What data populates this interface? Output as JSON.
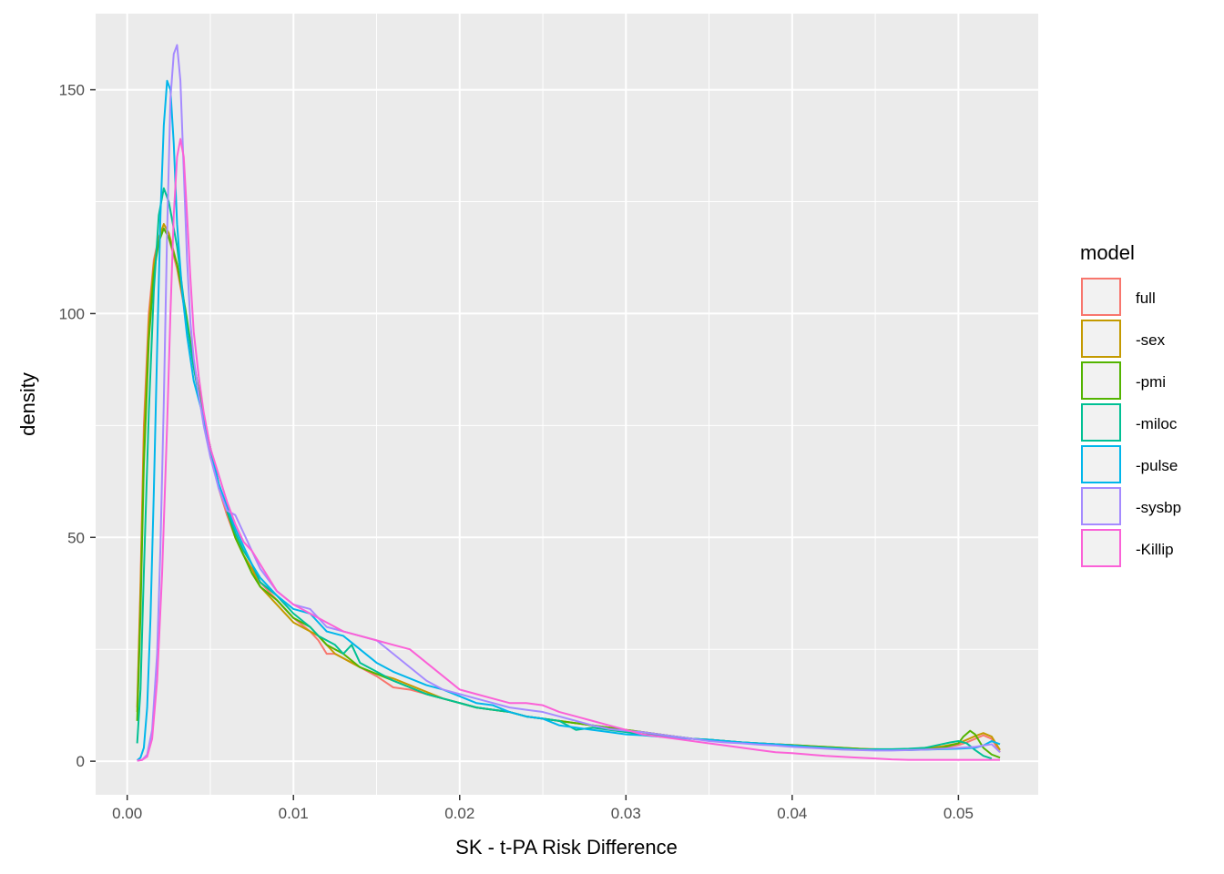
{
  "chart_data": {
    "type": "line",
    "title": "",
    "xlabel": "SK - t-PA Risk Difference",
    "ylabel": "density",
    "xlim": [
      -0.0019,
      0.0548
    ],
    "ylim": [
      -7.5,
      167
    ],
    "xticks": [
      0.0,
      0.01,
      0.02,
      0.03,
      0.04,
      0.05
    ],
    "xtick_labels": [
      "0.00",
      "0.01",
      "0.02",
      "0.03",
      "0.04",
      "0.05"
    ],
    "yticks": [
      0,
      50,
      100,
      150
    ],
    "ytick_labels": [
      "0",
      "50",
      "100",
      "150"
    ],
    "grid": true,
    "legend_title": "model",
    "legend_position": "right",
    "series": [
      {
        "name": "full",
        "color": "#F8766D",
        "x": [
          0.0006,
          0.0008,
          0.001,
          0.0013,
          0.0016,
          0.0019,
          0.0022,
          0.0025,
          0.003,
          0.0035,
          0.004,
          0.0045,
          0.005,
          0.0055,
          0.006,
          0.0065,
          0.007,
          0.0075,
          0.008,
          0.009,
          0.01,
          0.011,
          0.0115,
          0.012,
          0.0125,
          0.013,
          0.014,
          0.015,
          0.016,
          0.017,
          0.018,
          0.019,
          0.02,
          0.021,
          0.022,
          0.023,
          0.024,
          0.025,
          0.026,
          0.027,
          0.028,
          0.029,
          0.03,
          0.031,
          0.032,
          0.033,
          0.034,
          0.035,
          0.036,
          0.037,
          0.038,
          0.039,
          0.04,
          0.041,
          0.042,
          0.043,
          0.044,
          0.045,
          0.046,
          0.047,
          0.048,
          0.049,
          0.05,
          0.0505,
          0.051,
          0.0515,
          0.052,
          0.0525
        ],
        "y": [
          12,
          40,
          75,
          100,
          112,
          117,
          119,
          117,
          110,
          100,
          88,
          78,
          70,
          61,
          55,
          50,
          46,
          43,
          40,
          36,
          32,
          29,
          27,
          24,
          24,
          23,
          21,
          19,
          16.5,
          16,
          15,
          14,
          13,
          12,
          11.5,
          11,
          10,
          9.5,
          9,
          8.5,
          8,
          7.5,
          7,
          6.5,
          6,
          5.5,
          5,
          4.8,
          4.5,
          4.2,
          4,
          3.8,
          3.6,
          3.3,
          3,
          2.8,
          2.6,
          2.5,
          2.5,
          2.6,
          2.7,
          3,
          3.6,
          4.2,
          5,
          5.8,
          5,
          2
        ]
      },
      {
        "name": "-sex",
        "color": "#C49A00",
        "x": [
          0.0006,
          0.0008,
          0.001,
          0.0013,
          0.0016,
          0.0019,
          0.0022,
          0.0025,
          0.003,
          0.0035,
          0.004,
          0.0045,
          0.005,
          0.0055,
          0.006,
          0.0065,
          0.007,
          0.0075,
          0.008,
          0.009,
          0.01,
          0.011,
          0.0115,
          0.012,
          0.0125,
          0.013,
          0.014,
          0.015,
          0.016,
          0.017,
          0.018,
          0.019,
          0.02,
          0.021,
          0.022,
          0.023,
          0.024,
          0.025,
          0.026,
          0.027,
          0.028,
          0.029,
          0.03,
          0.031,
          0.032,
          0.033,
          0.034,
          0.035,
          0.036,
          0.037,
          0.038,
          0.039,
          0.04,
          0.041,
          0.042,
          0.043,
          0.044,
          0.045,
          0.046,
          0.047,
          0.048,
          0.049,
          0.05,
          0.0505,
          0.051,
          0.0515,
          0.052,
          0.0525
        ],
        "y": [
          11,
          38,
          72,
          98,
          111,
          117,
          120,
          118,
          111,
          100,
          89,
          79,
          70,
          62,
          56,
          50,
          46,
          43,
          39,
          35,
          31,
          29,
          28,
          26,
          24,
          23,
          21,
          19.5,
          18.5,
          17,
          15.5,
          14,
          13,
          12,
          11.5,
          11,
          10,
          9.5,
          9,
          8.5,
          8,
          7.5,
          7,
          6.5,
          6,
          5.5,
          5,
          4.8,
          4.5,
          4.2,
          4,
          3.8,
          3.6,
          3.4,
          3.2,
          3,
          2.8,
          2.7,
          2.6,
          2.7,
          3,
          3.3,
          4,
          4.8,
          5.6,
          6.3,
          5.5,
          2.5
        ]
      },
      {
        "name": "-pmi",
        "color": "#53B400",
        "x": [
          0.0006,
          0.0008,
          0.001,
          0.0013,
          0.0016,
          0.0019,
          0.0022,
          0.0025,
          0.003,
          0.0035,
          0.004,
          0.0045,
          0.005,
          0.0055,
          0.006,
          0.0065,
          0.007,
          0.0075,
          0.008,
          0.009,
          0.01,
          0.011,
          0.0115,
          0.012,
          0.0125,
          0.013,
          0.014,
          0.015,
          0.016,
          0.017,
          0.018,
          0.019,
          0.02,
          0.021,
          0.022,
          0.023,
          0.024,
          0.025,
          0.026,
          0.027,
          0.028,
          0.029,
          0.03,
          0.031,
          0.032,
          0.033,
          0.034,
          0.035,
          0.036,
          0.037,
          0.038,
          0.039,
          0.04,
          0.041,
          0.042,
          0.043,
          0.044,
          0.045,
          0.046,
          0.047,
          0.048,
          0.049,
          0.05,
          0.0503,
          0.0507,
          0.051,
          0.0515,
          0.052,
          0.0525
        ],
        "y": [
          9,
          33,
          66,
          94,
          109,
          116,
          119,
          117,
          111,
          101,
          89,
          79,
          70,
          62,
          56,
          50,
          46,
          42,
          39,
          36,
          32,
          30,
          28,
          26,
          25,
          24,
          21,
          19.5,
          18,
          16.5,
          15,
          14,
          13,
          12,
          11.5,
          11,
          10,
          9.5,
          9,
          8.5,
          8,
          7.5,
          7,
          6.5,
          6,
          5.5,
          5,
          4.8,
          4.5,
          4.2,
          4,
          3.8,
          3.6,
          3.4,
          3.2,
          3,
          2.8,
          2.6,
          2.5,
          2.5,
          2.7,
          3,
          4,
          5.5,
          6.8,
          6,
          3,
          1.5,
          0.8
        ]
      },
      {
        "name": "-miloc",
        "color": "#00C094",
        "x": [
          0.0006,
          0.0008,
          0.001,
          0.0013,
          0.0016,
          0.0019,
          0.0022,
          0.0025,
          0.003,
          0.0035,
          0.004,
          0.0045,
          0.005,
          0.0055,
          0.006,
          0.0065,
          0.007,
          0.0075,
          0.008,
          0.009,
          0.01,
          0.011,
          0.0115,
          0.012,
          0.0125,
          0.013,
          0.0135,
          0.014,
          0.015,
          0.016,
          0.017,
          0.018,
          0.019,
          0.02,
          0.021,
          0.022,
          0.023,
          0.024,
          0.025,
          0.026,
          0.027,
          0.028,
          0.029,
          0.03,
          0.031,
          0.032,
          0.033,
          0.034,
          0.035,
          0.036,
          0.037,
          0.038,
          0.039,
          0.04,
          0.041,
          0.042,
          0.043,
          0.044,
          0.045,
          0.046,
          0.047,
          0.048,
          0.049,
          0.0495,
          0.05,
          0.0505,
          0.051,
          0.0515,
          0.052
        ],
        "y": [
          4,
          16,
          42,
          78,
          105,
          122,
          128,
          125,
          115,
          100,
          88,
          78,
          70,
          62,
          56,
          51,
          47,
          44,
          40,
          37,
          33,
          30,
          28,
          27,
          26,
          24,
          26,
          22,
          20,
          18,
          16.5,
          15,
          14,
          13,
          12,
          11.5,
          11,
          10,
          9.5,
          9,
          7,
          7.5,
          7,
          6.5,
          6,
          5.8,
          5.5,
          5,
          4.8,
          4.5,
          4.2,
          4,
          3.8,
          3.5,
          3.2,
          3,
          2.8,
          2.6,
          2.7,
          2.7,
          2.8,
          3,
          3.8,
          4.2,
          4.5,
          4,
          2.5,
          1.2,
          0.6
        ]
      },
      {
        "name": "-pulse",
        "color": "#00B6EB",
        "x": [
          0.0006,
          0.0008,
          0.001,
          0.0012,
          0.0014,
          0.0016,
          0.0018,
          0.002,
          0.0022,
          0.0024,
          0.0026,
          0.0028,
          0.003,
          0.0033,
          0.0036,
          0.004,
          0.0045,
          0.005,
          0.0055,
          0.006,
          0.0065,
          0.007,
          0.0075,
          0.008,
          0.009,
          0.01,
          0.011,
          0.012,
          0.013,
          0.014,
          0.015,
          0.016,
          0.017,
          0.018,
          0.019,
          0.02,
          0.021,
          0.022,
          0.023,
          0.024,
          0.025,
          0.026,
          0.027,
          0.028,
          0.029,
          0.03,
          0.031,
          0.032,
          0.033,
          0.034,
          0.035,
          0.036,
          0.037,
          0.038,
          0.039,
          0.04,
          0.041,
          0.042,
          0.043,
          0.044,
          0.045,
          0.046,
          0.047,
          0.048,
          0.049,
          0.05,
          0.051,
          0.0515,
          0.052,
          0.0525
        ],
        "y": [
          0.2,
          0.8,
          3,
          12,
          32,
          60,
          92,
          122,
          142,
          152,
          150,
          138,
          120,
          105,
          95,
          85,
          78,
          70,
          62,
          57,
          52,
          48,
          44,
          41,
          37,
          34,
          33,
          29,
          28,
          25,
          22,
          20,
          18.5,
          17,
          16,
          14.5,
          13,
          12.5,
          11,
          10,
          9.5,
          8,
          7.5,
          7,
          6.5,
          6,
          5.8,
          5.5,
          5.2,
          5,
          4.8,
          4.5,
          4.2,
          4,
          3.8,
          3.5,
          3.2,
          3,
          2.8,
          2.6,
          2.5,
          2.5,
          2.5,
          2.6,
          2.7,
          2.8,
          3,
          3.5,
          4.5,
          3.8
        ]
      },
      {
        "name": "-sysbp",
        "color": "#A58AFF",
        "x": [
          0.0006,
          0.0009,
          0.0012,
          0.0015,
          0.0018,
          0.002,
          0.0022,
          0.0024,
          0.0026,
          0.0028,
          0.003,
          0.0032,
          0.0034,
          0.0036,
          0.0038,
          0.004,
          0.0043,
          0.0046,
          0.005,
          0.0055,
          0.006,
          0.0065,
          0.007,
          0.0075,
          0.008,
          0.009,
          0.01,
          0.011,
          0.012,
          0.013,
          0.014,
          0.015,
          0.016,
          0.017,
          0.018,
          0.019,
          0.02,
          0.021,
          0.022,
          0.023,
          0.024,
          0.025,
          0.026,
          0.027,
          0.028,
          0.029,
          0.03,
          0.031,
          0.032,
          0.033,
          0.034,
          0.035,
          0.036,
          0.037,
          0.038,
          0.039,
          0.04,
          0.041,
          0.042,
          0.043,
          0.044,
          0.045,
          0.046,
          0.047,
          0.048,
          0.049,
          0.05,
          0.051,
          0.0515,
          0.052,
          0.0525
        ],
        "y": [
          0.1,
          0.3,
          1.5,
          7,
          24,
          48,
          80,
          118,
          148,
          158,
          160,
          152,
          132,
          112,
          98,
          90,
          82,
          75,
          68,
          61,
          56,
          55,
          51,
          47,
          43,
          38,
          35,
          34,
          30,
          29,
          28,
          27,
          24,
          21,
          18,
          16,
          15,
          14,
          13,
          12,
          11.5,
          11,
          10,
          9,
          8,
          7.2,
          6.8,
          6.5,
          6,
          5.5,
          5,
          4.5,
          4.2,
          4,
          3.7,
          3.5,
          3.2,
          3,
          2.8,
          2.6,
          2.5,
          2.4,
          2.4,
          2.5,
          2.6,
          2.8,
          3,
          3.2,
          3.5,
          3.8,
          2
        ]
      },
      {
        "name": "-Killip",
        "color": "#FB61D7",
        "x": [
          0.0006,
          0.0009,
          0.0012,
          0.0015,
          0.0018,
          0.0021,
          0.0024,
          0.0026,
          0.0028,
          0.003,
          0.0032,
          0.0034,
          0.0036,
          0.0038,
          0.004,
          0.0043,
          0.0046,
          0.005,
          0.0055,
          0.006,
          0.0065,
          0.007,
          0.0075,
          0.008,
          0.009,
          0.01,
          0.011,
          0.012,
          0.013,
          0.014,
          0.015,
          0.016,
          0.017,
          0.018,
          0.019,
          0.02,
          0.021,
          0.022,
          0.023,
          0.024,
          0.025,
          0.026,
          0.027,
          0.028,
          0.029,
          0.03,
          0.031,
          0.032,
          0.033,
          0.034,
          0.035,
          0.036,
          0.037,
          0.038,
          0.039,
          0.04,
          0.041,
          0.042,
          0.043,
          0.044,
          0.045,
          0.046,
          0.047,
          0.048,
          0.049,
          0.05,
          0.051,
          0.052,
          0.0525
        ],
        "y": [
          0.1,
          0.3,
          1,
          5,
          18,
          42,
          75,
          100,
          122,
          135,
          139,
          135,
          122,
          108,
          96,
          86,
          78,
          70,
          64,
          58,
          53,
          49,
          47,
          44,
          38,
          35,
          33,
          31,
          29,
          28,
          27,
          26,
          25,
          22,
          19,
          16,
          15,
          14,
          13,
          13,
          12.5,
          11,
          10,
          9,
          8,
          7,
          6,
          5.5,
          5,
          4.5,
          4,
          3.5,
          3,
          2.5,
          2,
          1.8,
          1.5,
          1.2,
          1,
          0.8,
          0.6,
          0.4,
          0.3,
          0.3,
          0.3,
          0.3,
          0.3,
          0.3,
          0.3
        ]
      }
    ]
  }
}
